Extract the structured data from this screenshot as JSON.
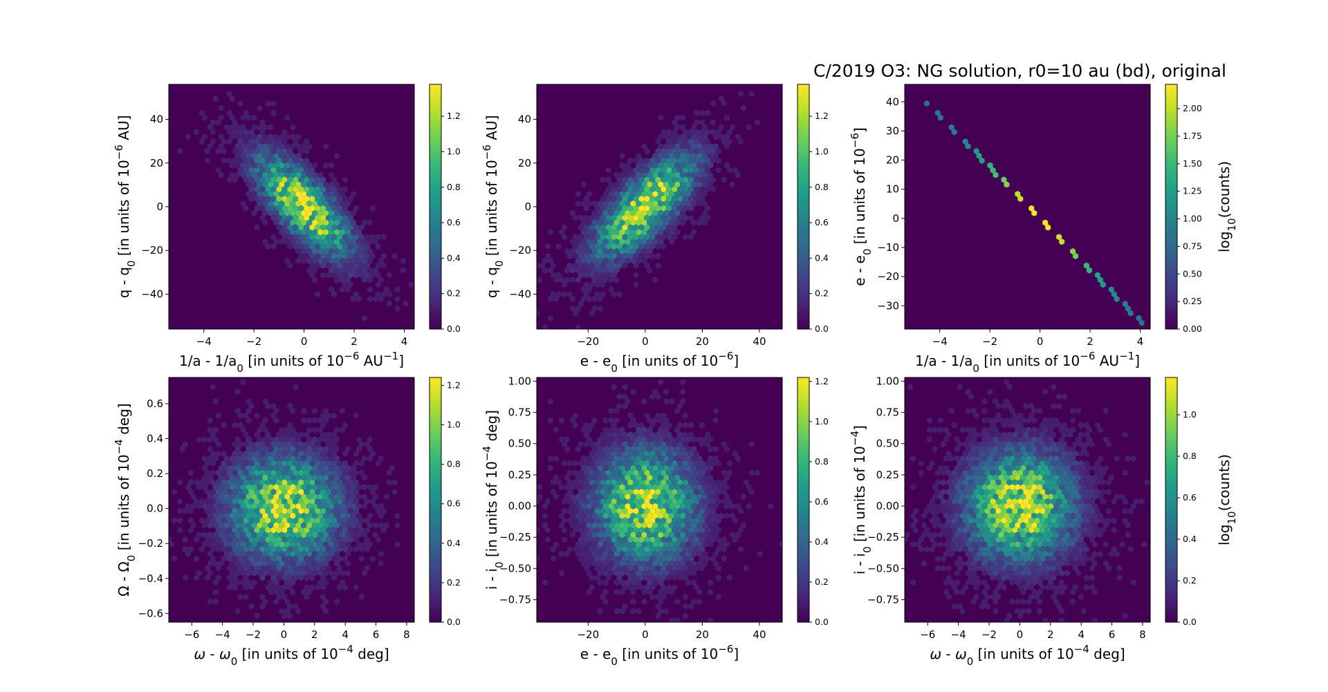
{
  "figure": {
    "title": "C/2019 O3: NG solution, r0=10 au (bd), original"
  },
  "colors": {
    "background": "#440154",
    "colormap": [
      "#440154",
      "#482878",
      "#3e4989",
      "#31688e",
      "#26828e",
      "#1f9e89",
      "#35b779",
      "#6ece58",
      "#b5de2b",
      "#fde725"
    ]
  },
  "chart_data": [
    {
      "id": "p1",
      "type": "heatmap",
      "subtype": "hexbin",
      "xlabel_html": "1/a - 1/a<tspan baseline-shift='sub' font-size='15'>0</tspan> [in units of 10<tspan baseline-shift='super' font-size='15'>−6</tspan> AU<tspan baseline-shift='super' font-size='15'>−1</tspan>]",
      "ylabel_html": "q - q<tspan baseline-shift='sub' font-size='15'>0</tspan> [in units of 10<tspan baseline-shift='super' font-size='15'>−6</tspan> AU]",
      "xlim": [
        -5.4,
        4.4
      ],
      "ylim": [
        -56,
        56
      ],
      "xticks": [
        -4,
        -2,
        0,
        2,
        4
      ],
      "xticklabels": [
        "−4",
        "−2",
        "0",
        "2",
        "4"
      ],
      "yticks": [
        -40,
        -20,
        0,
        20,
        40
      ],
      "yticklabels": [
        "−40",
        "−20",
        "0",
        "20",
        "40"
      ],
      "distribution": {
        "kind": "gaussian",
        "sx": 1.3,
        "sy": 16,
        "rho": -0.75
      },
      "colorbar": {
        "vmin": 0,
        "vmax": 1.38,
        "ticks": [
          0,
          0.2,
          0.4,
          0.6,
          0.8,
          1.0,
          1.2
        ],
        "ticklabels": [
          "0.0",
          "0.2",
          "0.4",
          "0.6",
          "0.8",
          "1.0",
          "1.2"
        ],
        "label": ""
      }
    },
    {
      "id": "p2",
      "type": "heatmap",
      "subtype": "hexbin",
      "xlabel_html": "e - e<tspan baseline-shift='sub' font-size='15'>0</tspan> [in units of 10<tspan baseline-shift='super' font-size='15'>−6</tspan>]",
      "ylabel_html": "q - q<tspan baseline-shift='sub' font-size='15'>0</tspan> [in units of 10<tspan baseline-shift='super' font-size='15'>−6</tspan> AU]",
      "xlim": [
        -38,
        48
      ],
      "ylim": [
        -56,
        56
      ],
      "xticks": [
        -20,
        0,
        20,
        40
      ],
      "xticklabels": [
        "−20",
        "0",
        "20",
        "40"
      ],
      "yticks": [
        -40,
        -20,
        0,
        20,
        40
      ],
      "yticklabels": [
        "−40",
        "−20",
        "0",
        "20",
        "40"
      ],
      "distribution": {
        "kind": "gaussian",
        "sx": 12,
        "sy": 16,
        "rho": 0.75
      },
      "colorbar": {
        "vmin": 0,
        "vmax": 1.38,
        "ticks": [
          0,
          0.2,
          0.4,
          0.6,
          0.8,
          1.0,
          1.2
        ],
        "ticklabels": [
          "0.0",
          "0.2",
          "0.4",
          "0.6",
          "0.8",
          "1.0",
          "1.2"
        ],
        "label": ""
      }
    },
    {
      "id": "p3",
      "type": "heatmap",
      "subtype": "hexbin",
      "xlabel_html": "1/a - 1/a<tspan baseline-shift='sub' font-size='15'>0</tspan> [in units of 10<tspan baseline-shift='super' font-size='15'>−6</tspan> AU<tspan baseline-shift='super' font-size='15'>−1</tspan>]",
      "ylabel_html": "e - e<tspan baseline-shift='sub' font-size='15'>0</tspan> [in units of 10<tspan baseline-shift='super' font-size='15'>−6</tspan>]",
      "xlim": [
        -5.4,
        4.4
      ],
      "ylim": [
        -38,
        46
      ],
      "xticks": [
        -4,
        -2,
        0,
        2,
        4
      ],
      "xticklabels": [
        "−4",
        "−2",
        "0",
        "2",
        "4"
      ],
      "yticks": [
        -30,
        -20,
        -10,
        0,
        10,
        20,
        30,
        40
      ],
      "yticklabels": [
        "−30",
        "−20",
        "−10",
        "0",
        "10",
        "20",
        "30",
        "40"
      ],
      "distribution": {
        "kind": "line",
        "slope": -8.8,
        "xmin": -4.6,
        "xmax": 4.3
      },
      "colorbar": {
        "vmin": 0,
        "vmax": 2.22,
        "ticks": [
          0,
          0.25,
          0.5,
          0.75,
          1.0,
          1.25,
          1.5,
          1.75,
          2.0
        ],
        "ticklabels": [
          "0.00",
          "0.25",
          "0.50",
          "0.75",
          "1.00",
          "1.25",
          "1.50",
          "1.75",
          "2.00"
        ],
        "label_html": "log<tspan baseline-shift='sub' font-size='15'>10</tspan>(counts)"
      }
    },
    {
      "id": "p4",
      "type": "heatmap",
      "subtype": "hexbin",
      "xlabel_html": "<tspan font-style='italic'>ω</tspan> - <tspan font-style='italic'>ω</tspan><tspan baseline-shift='sub' font-size='15'>0</tspan> [in units of 10<tspan baseline-shift='super' font-size='15'>−4</tspan> deg]",
      "ylabel_html": "Ω - Ω<tspan baseline-shift='sub' font-size='15'>0</tspan> [in units of 10<tspan baseline-shift='super' font-size='15'>−4</tspan> deg]",
      "xlim": [
        -7.5,
        8.5
      ],
      "ylim": [
        -0.65,
        0.75
      ],
      "xticks": [
        -6,
        -4,
        -2,
        0,
        2,
        4,
        6,
        8
      ],
      "xticklabels": [
        "−6",
        "−4",
        "−2",
        "0",
        "2",
        "4",
        "6",
        "8"
      ],
      "yticks": [
        -0.6,
        -0.4,
        -0.2,
        0.0,
        0.2,
        0.4,
        0.6
      ],
      "yticklabels": [
        "−0.6",
        "−0.4",
        "−0.2",
        "0.0",
        "0.2",
        "0.4",
        "0.6"
      ],
      "distribution": {
        "kind": "gaussian",
        "sx": 2.4,
        "sy": 0.2,
        "rho": 0.0
      },
      "colorbar": {
        "vmin": 0,
        "vmax": 1.24,
        "ticks": [
          0,
          0.2,
          0.4,
          0.6,
          0.8,
          1.0,
          1.2
        ],
        "ticklabels": [
          "0.0",
          "0.2",
          "0.4",
          "0.6",
          "0.8",
          "1.0",
          "1.2"
        ],
        "label": ""
      }
    },
    {
      "id": "p5",
      "type": "heatmap",
      "subtype": "hexbin",
      "xlabel_html": "e - e<tspan baseline-shift='sub' font-size='15'>0</tspan> [in units of 10<tspan baseline-shift='super' font-size='15'>−6</tspan>]",
      "ylabel_html": "i - i<tspan baseline-shift='sub' font-size='15'>0</tspan> [in units of 10<tspan baseline-shift='super' font-size='15'>−4</tspan> deg]",
      "xlim": [
        -38,
        48
      ],
      "ylim": [
        -0.93,
        1.03
      ],
      "xticks": [
        -20,
        0,
        20,
        40
      ],
      "xticklabels": [
        "−20",
        "0",
        "20",
        "40"
      ],
      "yticks": [
        -0.75,
        -0.5,
        -0.25,
        0.0,
        0.25,
        0.5,
        0.75,
        1.0
      ],
      "yticklabels": [
        "−0.75",
        "−0.50",
        "−0.25",
        "0.00",
        "0.25",
        "0.50",
        "0.75",
        "1.00"
      ],
      "distribution": {
        "kind": "gaussian",
        "sx": 12,
        "sy": 0.3,
        "rho": 0.0
      },
      "colorbar": {
        "vmin": 0,
        "vmax": 1.22,
        "ticks": [
          0,
          0.2,
          0.4,
          0.6,
          0.8,
          1.0,
          1.2
        ],
        "ticklabels": [
          "0.0",
          "0.2",
          "0.4",
          "0.6",
          "0.8",
          "1.0",
          "1.2"
        ],
        "label": ""
      }
    },
    {
      "id": "p6",
      "type": "heatmap",
      "subtype": "hexbin",
      "xlabel_html": "<tspan font-style='italic'>ω</tspan> - <tspan font-style='italic'>ω</tspan><tspan baseline-shift='sub' font-size='15'>0</tspan> [in units of 10<tspan baseline-shift='super' font-size='15'>−4</tspan> deg]",
      "ylabel_html": "i - i<tspan baseline-shift='sub' font-size='15'>0</tspan> [in units of 10<tspan baseline-shift='super' font-size='15'>−4</tspan>]",
      "xlim": [
        -7.5,
        8.5
      ],
      "ylim": [
        -0.93,
        1.03
      ],
      "xticks": [
        -6,
        -4,
        -2,
        0,
        2,
        4,
        6,
        8
      ],
      "xticklabels": [
        "−6",
        "−4",
        "−2",
        "0",
        "2",
        "4",
        "6",
        "8"
      ],
      "yticks": [
        -0.75,
        -0.5,
        -0.25,
        0.0,
        0.25,
        0.5,
        0.75,
        1.0
      ],
      "yticklabels": [
        "−0.75",
        "−0.50",
        "−0.25",
        "0.00",
        "0.25",
        "0.50",
        "0.75",
        "1.00"
      ],
      "distribution": {
        "kind": "gaussian",
        "sx": 2.4,
        "sy": 0.3,
        "rho": 0.0
      },
      "colorbar": {
        "vmin": 0,
        "vmax": 1.18,
        "ticks": [
          0,
          0.2,
          0.4,
          0.6,
          0.8,
          1.0
        ],
        "ticklabels": [
          "0.0",
          "0.2",
          "0.4",
          "0.6",
          "0.8",
          "1.0"
        ],
        "label_html": "log<tspan baseline-shift='sub' font-size='15'>10</tspan>(counts)"
      }
    }
  ]
}
